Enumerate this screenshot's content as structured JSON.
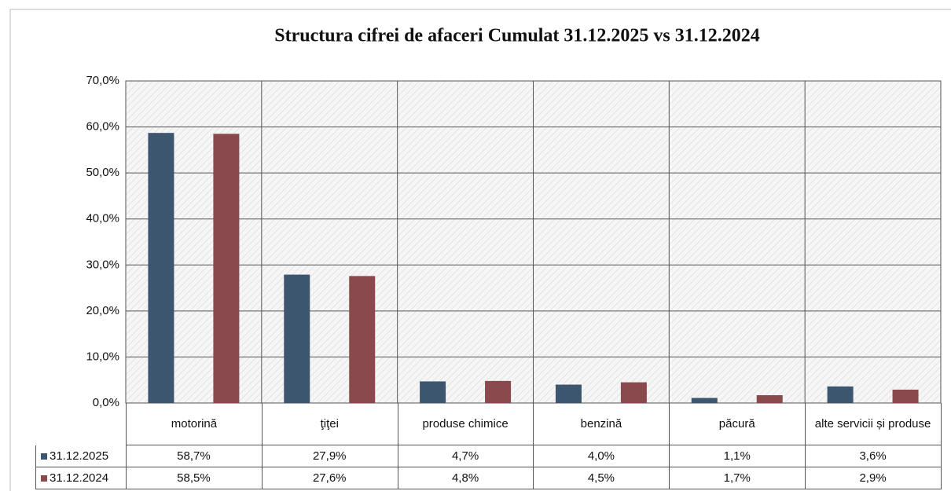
{
  "chart_data": {
    "type": "bar",
    "title": "Structura cifrei de afaceri Cumulat 31.12.2025 vs 31.12.2024",
    "categories": [
      "motorină",
      "ţiţei",
      "produse chimice",
      "benzină",
      "păcură",
      "alte servicii și produse"
    ],
    "series": [
      {
        "name": "31.12.2025",
        "color": "#3d5670",
        "values": [
          58.7,
          27.9,
          4.7,
          4.0,
          1.1,
          3.6
        ],
        "value_labels": [
          "58,7%",
          "27,9%",
          "4,7%",
          "4,0%",
          "1,1%",
          "3,6%"
        ]
      },
      {
        "name": "31.12.2024",
        "color": "#8a4a4d",
        "values": [
          58.5,
          27.6,
          4.8,
          4.5,
          1.7,
          2.9
        ],
        "value_labels": [
          "58,5%",
          "27,6%",
          "4,8%",
          "4,5%",
          "1,7%",
          "2,9%"
        ]
      }
    ],
    "ylim": [
      0,
      70
    ],
    "yticks": [
      {
        "value": 0,
        "label": "0,0%"
      },
      {
        "value": 10,
        "label": "10,0%"
      },
      {
        "value": 20,
        "label": "20,0%"
      },
      {
        "value": 30,
        "label": "30,0%"
      },
      {
        "value": 40,
        "label": "40,0%"
      },
      {
        "value": 50,
        "label": "50,0%"
      },
      {
        "value": 60,
        "label": "60,0%"
      },
      {
        "value": 70,
        "label": "70,0%"
      }
    ],
    "grid": true
  }
}
